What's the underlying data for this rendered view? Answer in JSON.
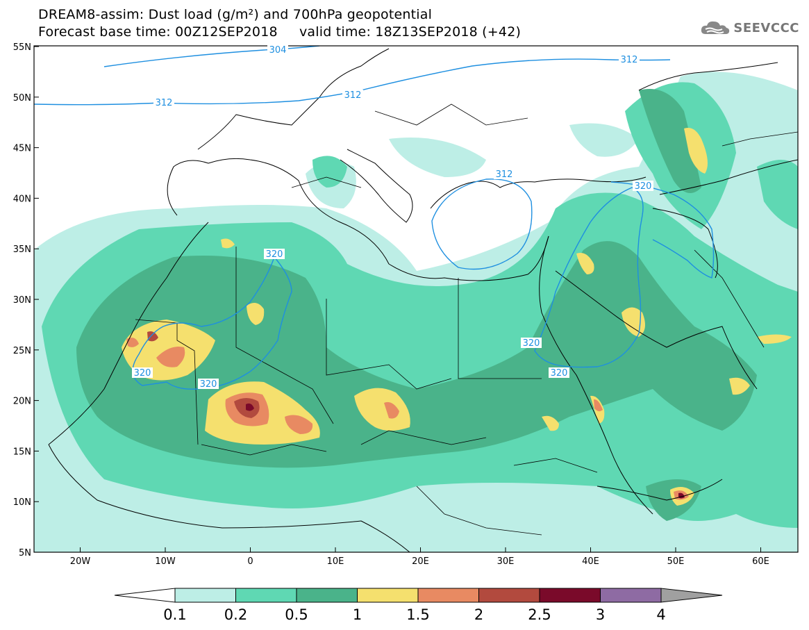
{
  "header": {
    "title_line1": "DREAM8-assim: Dust load (g/m²) and 700hPa geopotential",
    "title_line2": "Forecast base time: 00Z12SEP2018     valid time: 18Z13SEP2018 (+42)",
    "brand": "SEEVCCC"
  },
  "axes": {
    "lat_labels": [
      "55N",
      "50N",
      "45N",
      "40N",
      "35N",
      "30N",
      "25N",
      "20N",
      "15N",
      "10N",
      "5N"
    ],
    "lon_labels": [
      "20W",
      "10W",
      "0",
      "10E",
      "20E",
      "30E",
      "40E",
      "50E",
      "60E"
    ]
  },
  "colorbar": {
    "levels": [
      "0.1",
      "0.2",
      "0.5",
      "1",
      "1.5",
      "2",
      "2.5",
      "3",
      "4"
    ],
    "colors": [
      "#ffffff",
      "#bdeee6",
      "#5fd8b3",
      "#4ab38a",
      "#f5e06e",
      "#e88a62",
      "#b24a3e",
      "#7a0a2a",
      "#8e6ba3",
      "#a0a0a0"
    ]
  },
  "contours": {
    "labels": [
      "304",
      "312",
      "312",
      "312",
      "312",
      "320",
      "320",
      "320",
      "320",
      "320",
      "320"
    ]
  }
}
